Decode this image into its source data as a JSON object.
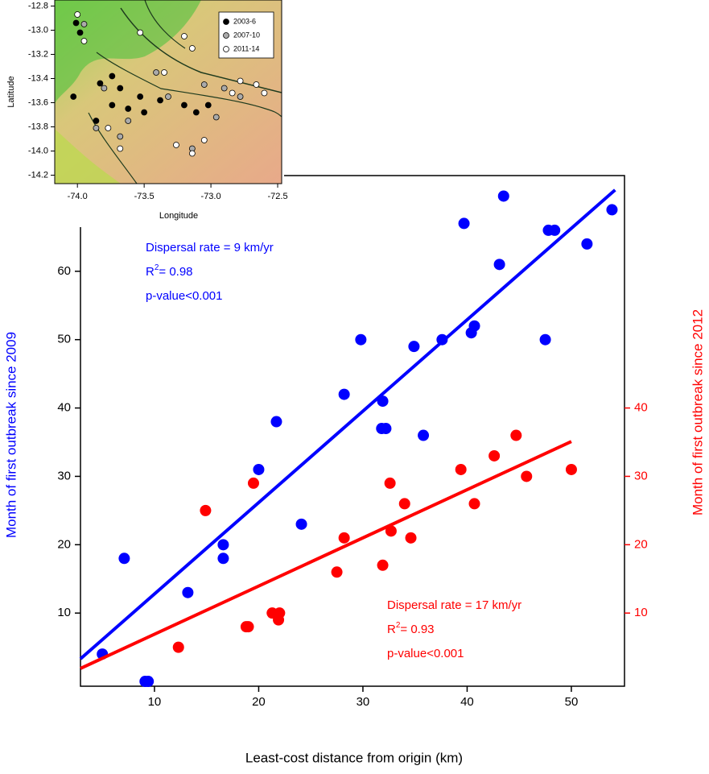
{
  "chart_data": [
    {
      "type": "scatter",
      "x_label": "Least-cost distance from origin (km)",
      "y_label": "Month of first outbreak since 2009",
      "y2_label": "Month of first outbreak since 2012",
      "xlim": [
        2.9,
        55.1
      ],
      "ylim": [
        -0.7,
        74
      ],
      "y2lim": [
        -0.7,
        74
      ],
      "xticks": [
        10,
        20,
        30,
        40,
        50
      ],
      "yticks": [
        10,
        20,
        30,
        40,
        50,
        60
      ],
      "y2ticks": [
        10,
        20,
        30,
        40
      ],
      "series": [
        {
          "color": "#0000ff",
          "x": [
            5.0,
            7.1,
            9.1,
            9.4,
            13.2,
            16.6,
            16.6,
            20.0,
            21.7,
            24.1,
            28.2,
            29.8,
            31.8,
            32.2,
            31.9,
            34.9,
            35.8,
            37.6,
            39.7,
            40.4,
            40.7,
            43.1,
            43.5,
            47.5,
            47.8,
            48.4,
            51.5,
            53.9
          ],
          "values": [
            4,
            18,
            0,
            0,
            13,
            20,
            18,
            31,
            38,
            23,
            42,
            50,
            37,
            37,
            41,
            49,
            36,
            50,
            67,
            51,
            52,
            61,
            71,
            50,
            66,
            66,
            64,
            69
          ],
          "trend_x": [
            2.9,
            54.2
          ],
          "trend_values": [
            3.3,
            71.9
          ],
          "annotation": {
            "rate": "Dispersal rate = 9 km/yr",
            "r2": [
              "R",
              "2",
              "= 0.98"
            ],
            "p": "p-value<0.001"
          }
        },
        {
          "color": "#ff0000",
          "axis": "y2",
          "x": [
            12.3,
            14.9,
            18.8,
            19.0,
            19.5,
            21.3,
            22.0,
            21.9,
            27.5,
            28.2,
            31.9,
            32.6,
            32.7,
            34.0,
            34.6,
            39.4,
            40.7,
            42.6,
            44.7,
            45.7,
            50.0
          ],
          "values": [
            5,
            25,
            8,
            8,
            29,
            10,
            10,
            9,
            16,
            21,
            17,
            29,
            22,
            26,
            21,
            31,
            26,
            33,
            36,
            30,
            31
          ],
          "trend_x": [
            2.9,
            50.0
          ],
          "trend_values": [
            1.9,
            35.1
          ],
          "annotation": {
            "rate": "Dispersal rate = 17 km/yr",
            "r2": [
              "R",
              "2",
              "= 0.93"
            ],
            "p": "p-value<0.001"
          }
        }
      ]
    },
    {
      "type": "scatter",
      "x_label": "Longitude",
      "y_label": "Latitude",
      "xlim": [
        -74.17,
        -72.47
      ],
      "ylim": [
        -14.27,
        -12.75
      ],
      "xticks": [
        {
          "value": -74,
          "label": "-74.0"
        },
        -73.5,
        {
          "value": -73,
          "label": "-73.0"
        },
        -72.5
      ],
      "yticks": [
        -12.8,
        {
          "value": -13,
          "label": "-13.0"
        },
        -13.2,
        -13.4,
        -13.6,
        -13.8,
        {
          "value": -14,
          "label": "-14.0"
        },
        -14.2
      ],
      "legend": "top-right",
      "series": [
        {
          "name": "2003-6",
          "color": "#000000",
          "x": [
            -74.01,
            -73.98,
            -73.83,
            -73.74,
            -73.68,
            -73.74,
            -73.62,
            -73.53,
            -73.38,
            -73.2,
            -73.11,
            -73.02,
            -73.86,
            -73.5,
            -74.03
          ],
          "values": [
            -12.94,
            -13.02,
            -13.44,
            -13.38,
            -13.48,
            -13.62,
            -13.65,
            -13.55,
            -13.58,
            -13.62,
            -13.68,
            -13.62,
            -13.75,
            -13.68,
            -13.55
          ]
        },
        {
          "name": "2007-10",
          "color": "#aaaaaa",
          "x": [
            -73.95,
            -73.8,
            -73.86,
            -73.68,
            -73.32,
            -73.05,
            -72.96,
            -72.78,
            -73.14,
            -73.62,
            -73.41,
            -72.9
          ],
          "values": [
            -12.95,
            -13.48,
            -13.81,
            -13.88,
            -13.55,
            -13.45,
            -13.72,
            -13.55,
            -13.98,
            -13.75,
            -13.35,
            -13.48
          ]
        },
        {
          "name": "2011-14",
          "color": "#ffffff",
          "x": [
            -74.0,
            -73.95,
            -73.53,
            -73.35,
            -73.14,
            -72.78,
            -72.66,
            -72.6,
            -73.26,
            -73.14,
            -73.05,
            -73.77,
            -73.68,
            -72.84,
            -73.2
          ],
          "values": [
            -12.87,
            -13.09,
            -13.02,
            -13.35,
            -13.15,
            -13.42,
            -13.45,
            -13.52,
            -13.95,
            -14.02,
            -13.91,
            -13.81,
            -13.98,
            -13.52,
            -13.05
          ]
        }
      ]
    }
  ]
}
